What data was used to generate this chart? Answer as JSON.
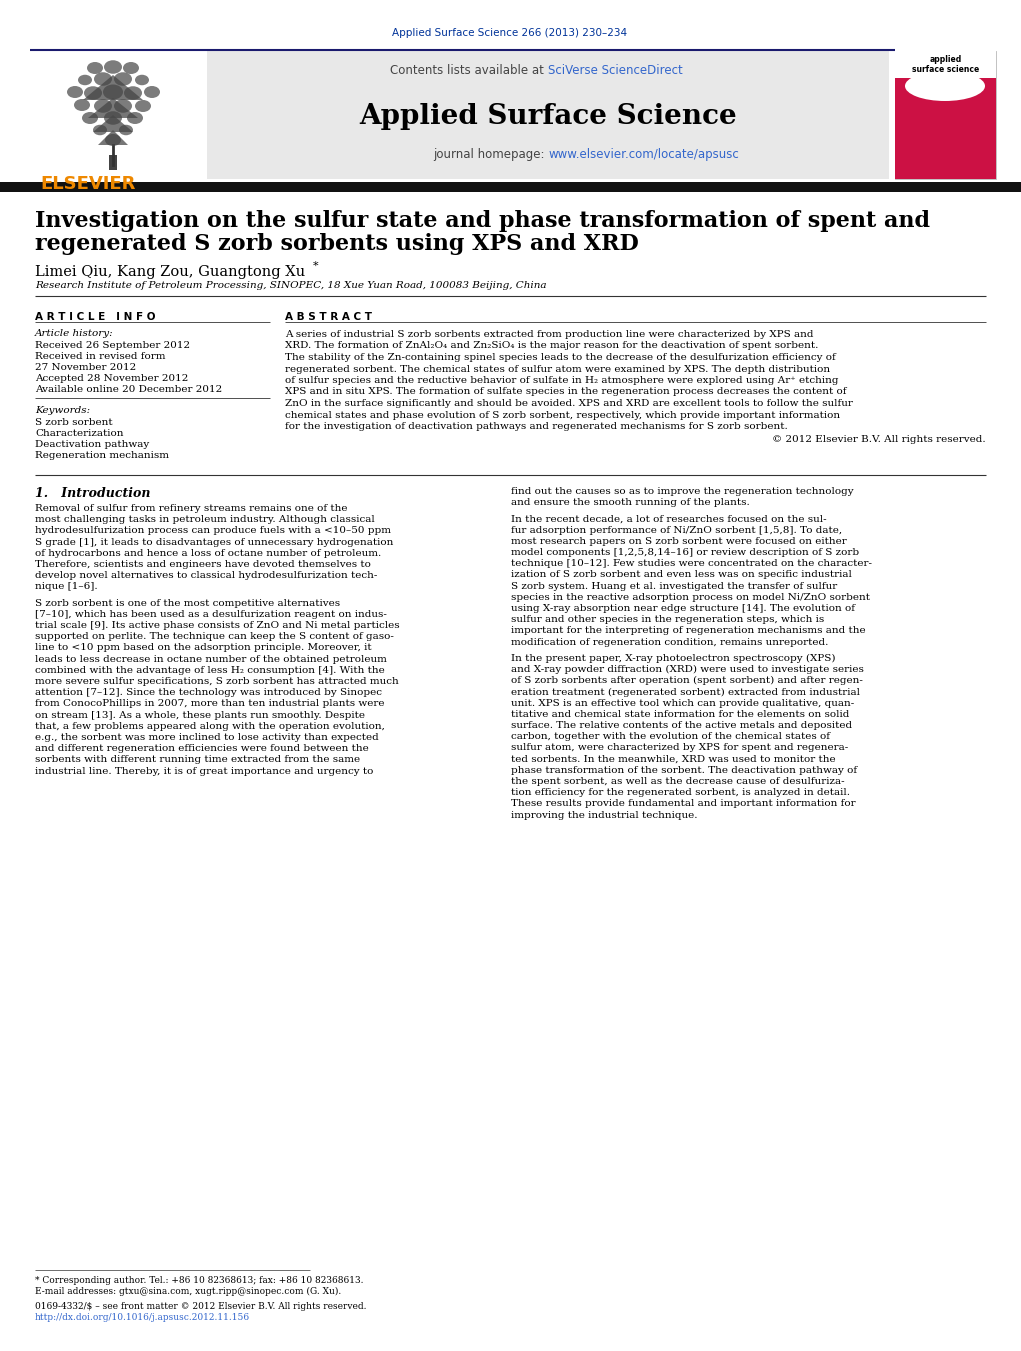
{
  "page_bg": "#ffffff",
  "top_journal_ref": "Applied Surface Science 266 (2013) 230–234",
  "top_journal_ref_color": "#003399",
  "header_sciverse_color": "#3366cc",
  "header_url_color": "#3366cc",
  "header_divider_color": "#1a1a6e",
  "elsevier_text": "ELSEVIER",
  "elsevier_color": "#ee8800",
  "title": "Investigation on the sulfur state and phase transformation of spent and\nregenerated S zorb sorbents using XPS and XRD",
  "authors": "Limei Qiu, Kang Zou, Guangtong Xu",
  "affiliation": "Research Institute of Petroleum Processing, SINOPEC, 18 Xue Yuan Road, 100083 Beijing, China",
  "article_info_label": "A R T I C L E   I N F O",
  "abstract_label": "A B S T R A C T",
  "article_history_label": "Article history:",
  "received": "Received 26 September 2012",
  "revised": "Received in revised form",
  "revised2": "27 November 2012",
  "accepted": "Accepted 28 November 2012",
  "available": "Available online 20 December 2012",
  "keywords_label": "Keywords:",
  "keyword1": "S zorb sorbent",
  "keyword2": "Characterization",
  "keyword3": "Deactivation pathway",
  "keyword4": "Regeneration mechanism",
  "copyright": "© 2012 Elsevier B.V. All rights reserved.",
  "section1_title": "1.   Introduction",
  "footer_note": "* Corresponding author. Tel.: +86 10 82368613; fax: +86 10 82368613.",
  "footer_email": "E-mail addresses: gtxu@sina.com, xugt.ripp@sinopec.com (G. Xu).",
  "footer_issn": "0169-4332/$ – see front matter © 2012 Elsevier B.V. All rights reserved.",
  "footer_doi": "http://dx.doi.org/10.1016/j.apsusc.2012.11.156"
}
